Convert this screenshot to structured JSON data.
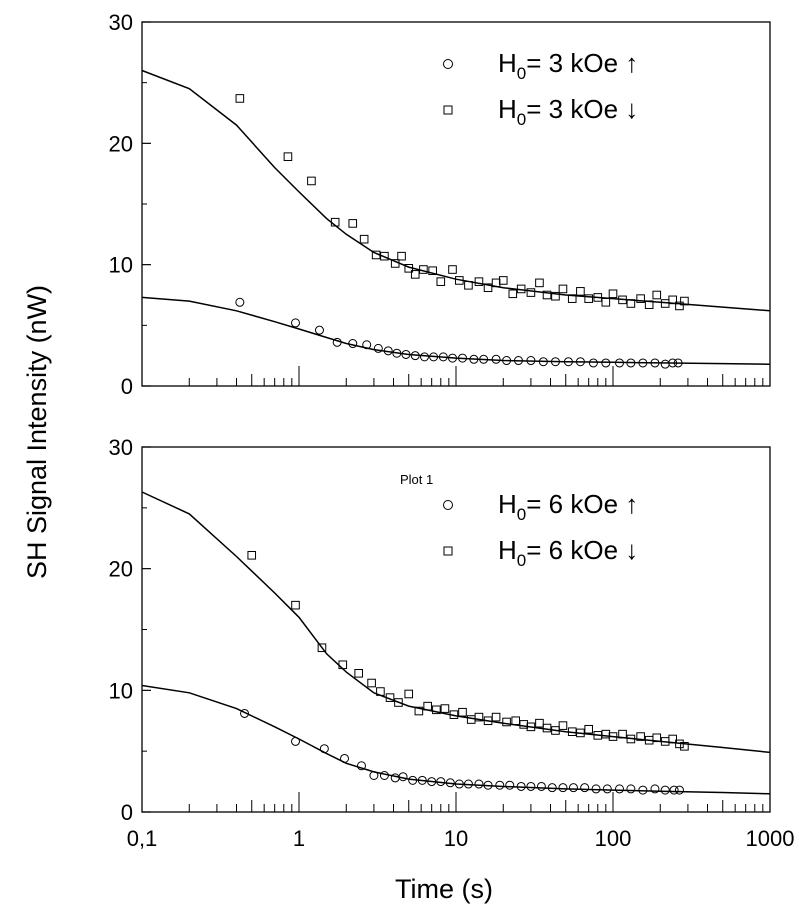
{
  "figure": {
    "ylabel": "SH Signal Intensity (nW)",
    "xlabel": "Time (s)"
  },
  "chart_data": [
    {
      "type": "scatter",
      "panel": "top",
      "xscale": "log",
      "xlim": [
        0.1,
        1000
      ],
      "ylim": [
        0,
        30
      ],
      "yticks": [
        "0",
        "10",
        "20",
        "30"
      ],
      "xticks": [],
      "grid": false,
      "legend_position": "top-right",
      "plot_label": "",
      "legend": [
        {
          "prefix": "H",
          "sub": "0",
          "suffix": "= 3 kOe ↑",
          "marker": "circle"
        },
        {
          "prefix": "H",
          "sub": "0",
          "suffix": "= 3 kOe ↓",
          "marker": "square"
        }
      ],
      "series": [
        {
          "legend_index": 1,
          "marker": "square",
          "points": [
            [
              0.42,
              23.7
            ],
            [
              0.85,
              18.9
            ],
            [
              1.2,
              16.9
            ],
            [
              1.7,
              13.5
            ],
            [
              2.2,
              13.4
            ],
            [
              2.6,
              12.1
            ],
            [
              3.1,
              10.8
            ],
            [
              3.5,
              10.7
            ],
            [
              4.1,
              10.1
            ],
            [
              4.5,
              10.7
            ],
            [
              5.0,
              9.7
            ],
            [
              5.5,
              9.2
            ],
            [
              6.2,
              9.6
            ],
            [
              7.1,
              9.5
            ],
            [
              8.0,
              8.6
            ],
            [
              9.5,
              9.6
            ],
            [
              10.5,
              8.7
            ],
            [
              12,
              8.3
            ],
            [
              14,
              8.6
            ],
            [
              16,
              8.1
            ],
            [
              18,
              8.5
            ],
            [
              20,
              8.7
            ],
            [
              23,
              7.6
            ],
            [
              26,
              8.0
            ],
            [
              30,
              7.7
            ],
            [
              34,
              8.5
            ],
            [
              38,
              7.5
            ],
            [
              43,
              7.4
            ],
            [
              48,
              8.0
            ],
            [
              55,
              7.2
            ],
            [
              62,
              7.8
            ],
            [
              70,
              7.2
            ],
            [
              80,
              7.3
            ],
            [
              90,
              6.9
            ],
            [
              100,
              7.6
            ],
            [
              115,
              7.1
            ],
            [
              130,
              6.8
            ],
            [
              150,
              7.2
            ],
            [
              170,
              6.7
            ],
            [
              190,
              7.5
            ],
            [
              215,
              6.8
            ],
            [
              240,
              7.1
            ],
            [
              265,
              6.6
            ],
            [
              285,
              7.0
            ]
          ],
          "fit": [
            [
              0.1,
              26.0
            ],
            [
              0.2,
              24.5
            ],
            [
              0.4,
              21.5
            ],
            [
              0.7,
              18.0
            ],
            [
              1.0,
              16.0
            ],
            [
              1.5,
              13.8
            ],
            [
              2.0,
              12.5
            ],
            [
              3.0,
              11.0
            ],
            [
              5.0,
              9.8
            ],
            [
              10,
              8.8
            ],
            [
              20,
              8.1
            ],
            [
              50,
              7.5
            ],
            [
              100,
              7.2
            ],
            [
              200,
              6.9
            ],
            [
              500,
              6.5
            ],
            [
              1000,
              6.2
            ]
          ]
        },
        {
          "legend_index": 0,
          "marker": "circle",
          "points": [
            [
              0.42,
              6.9
            ],
            [
              0.95,
              5.2
            ],
            [
              1.35,
              4.6
            ],
            [
              1.75,
              3.6
            ],
            [
              2.2,
              3.5
            ],
            [
              2.7,
              3.4
            ],
            [
              3.2,
              3.1
            ],
            [
              3.7,
              2.9
            ],
            [
              4.2,
              2.7
            ],
            [
              4.8,
              2.6
            ],
            [
              5.5,
              2.5
            ],
            [
              6.3,
              2.4
            ],
            [
              7.2,
              2.4
            ],
            [
              8.3,
              2.4
            ],
            [
              9.5,
              2.3
            ],
            [
              11,
              2.3
            ],
            [
              13,
              2.2
            ],
            [
              15,
              2.2
            ],
            [
              18,
              2.2
            ],
            [
              21,
              2.1
            ],
            [
              25,
              2.1
            ],
            [
              30,
              2.1
            ],
            [
              36,
              2.0
            ],
            [
              43,
              2.0
            ],
            [
              52,
              2.0
            ],
            [
              62,
              2.0
            ],
            [
              75,
              1.9
            ],
            [
              90,
              1.9
            ],
            [
              110,
              1.9
            ],
            [
              130,
              1.9
            ],
            [
              155,
              1.9
            ],
            [
              185,
              1.9
            ],
            [
              215,
              1.8
            ],
            [
              240,
              1.9
            ],
            [
              260,
              1.9
            ]
          ],
          "fit": [
            [
              0.1,
              7.3
            ],
            [
              0.2,
              7.0
            ],
            [
              0.4,
              6.2
            ],
            [
              0.7,
              5.3
            ],
            [
              1.0,
              4.7
            ],
            [
              1.5,
              4.0
            ],
            [
              2.0,
              3.5
            ],
            [
              3.0,
              3.0
            ],
            [
              5.0,
              2.6
            ],
            [
              10,
              2.3
            ],
            [
              20,
              2.1
            ],
            [
              50,
              2.0
            ],
            [
              100,
              1.95
            ],
            [
              200,
              1.9
            ],
            [
              500,
              1.85
            ],
            [
              1000,
              1.8
            ]
          ]
        }
      ]
    },
    {
      "type": "scatter",
      "panel": "bottom",
      "xscale": "log",
      "xlim": [
        0.1,
        1000
      ],
      "ylim": [
        0,
        30
      ],
      "yticks": [
        "0",
        "10",
        "20",
        "30"
      ],
      "xticks": [
        "0,1",
        "1",
        "10",
        "100",
        "1000"
      ],
      "grid": false,
      "legend_position": "top-right",
      "plot_label": "Plot 1",
      "legend": [
        {
          "prefix": "H",
          "sub": "0",
          "suffix": "= 6 kOe ↑",
          "marker": "circle"
        },
        {
          "prefix": "H",
          "sub": "0",
          "suffix": "= 6 kOe ↓",
          "marker": "square"
        }
      ],
      "series": [
        {
          "legend_index": 1,
          "marker": "square",
          "points": [
            [
              0.5,
              21.1
            ],
            [
              0.95,
              17.0
            ],
            [
              1.4,
              13.5
            ],
            [
              1.9,
              12.1
            ],
            [
              2.4,
              11.4
            ],
            [
              2.9,
              10.6
            ],
            [
              3.3,
              9.9
            ],
            [
              3.8,
              9.4
            ],
            [
              4.3,
              9.0
            ],
            [
              5.0,
              9.7
            ],
            [
              5.8,
              8.3
            ],
            [
              6.6,
              8.7
            ],
            [
              7.5,
              8.4
            ],
            [
              8.5,
              8.5
            ],
            [
              9.7,
              8.0
            ],
            [
              11,
              8.2
            ],
            [
              12.5,
              7.6
            ],
            [
              14,
              7.8
            ],
            [
              16,
              7.5
            ],
            [
              18,
              7.8
            ],
            [
              21,
              7.4
            ],
            [
              24,
              7.5
            ],
            [
              27,
              7.2
            ],
            [
              30,
              7.0
            ],
            [
              34,
              7.3
            ],
            [
              38,
              6.9
            ],
            [
              43,
              6.7
            ],
            [
              48,
              7.1
            ],
            [
              55,
              6.6
            ],
            [
              62,
              6.5
            ],
            [
              70,
              6.8
            ],
            [
              80,
              6.3
            ],
            [
              90,
              6.4
            ],
            [
              100,
              6.2
            ],
            [
              115,
              6.4
            ],
            [
              130,
              6.0
            ],
            [
              150,
              6.2
            ],
            [
              170,
              5.9
            ],
            [
              190,
              6.1
            ],
            [
              215,
              5.8
            ],
            [
              240,
              6.0
            ],
            [
              265,
              5.6
            ],
            [
              285,
              5.4
            ]
          ],
          "fit": [
            [
              0.1,
              26.3
            ],
            [
              0.2,
              24.5
            ],
            [
              0.4,
              21.0
            ],
            [
              0.7,
              18.0
            ],
            [
              1.0,
              16.0
            ],
            [
              1.5,
              13.0
            ],
            [
              2.0,
              11.5
            ],
            [
              3.0,
              9.8
            ],
            [
              5.0,
              8.7
            ],
            [
              10,
              7.9
            ],
            [
              20,
              7.3
            ],
            [
              50,
              6.6
            ],
            [
              100,
              6.2
            ],
            [
              200,
              5.8
            ],
            [
              500,
              5.3
            ],
            [
              1000,
              4.9
            ]
          ]
        },
        {
          "legend_index": 0,
          "marker": "circle",
          "points": [
            [
              0.45,
              8.1
            ],
            [
              0.95,
              5.8
            ],
            [
              1.45,
              5.2
            ],
            [
              1.95,
              4.4
            ],
            [
              2.5,
              3.8
            ],
            [
              3.0,
              3.0
            ],
            [
              3.5,
              3.0
            ],
            [
              4.1,
              2.8
            ],
            [
              4.6,
              2.9
            ],
            [
              5.3,
              2.6
            ],
            [
              6.1,
              2.6
            ],
            [
              7.0,
              2.5
            ],
            [
              8.0,
              2.5
            ],
            [
              9.2,
              2.4
            ],
            [
              10.5,
              2.3
            ],
            [
              12,
              2.3
            ],
            [
              14,
              2.3
            ],
            [
              16,
              2.2
            ],
            [
              19,
              2.2
            ],
            [
              22,
              2.2
            ],
            [
              26,
              2.1
            ],
            [
              30,
              2.1
            ],
            [
              35,
              2.1
            ],
            [
              41,
              2.0
            ],
            [
              48,
              2.0
            ],
            [
              56,
              2.0
            ],
            [
              66,
              2.0
            ],
            [
              78,
              1.9
            ],
            [
              92,
              1.9
            ],
            [
              110,
              1.9
            ],
            [
              130,
              1.9
            ],
            [
              155,
              1.8
            ],
            [
              185,
              1.9
            ],
            [
              215,
              1.8
            ],
            [
              245,
              1.8
            ],
            [
              265,
              1.8
            ]
          ],
          "fit": [
            [
              0.1,
              10.4
            ],
            [
              0.2,
              9.8
            ],
            [
              0.4,
              8.5
            ],
            [
              0.7,
              7.0
            ],
            [
              1.0,
              6.0
            ],
            [
              1.5,
              4.8
            ],
            [
              2.0,
              4.0
            ],
            [
              3.0,
              3.3
            ],
            [
              5.0,
              2.7
            ],
            [
              10,
              2.3
            ],
            [
              20,
              2.1
            ],
            [
              50,
              1.9
            ],
            [
              100,
              1.8
            ],
            [
              200,
              1.7
            ],
            [
              500,
              1.6
            ],
            [
              1000,
              1.5
            ]
          ]
        }
      ]
    }
  ]
}
